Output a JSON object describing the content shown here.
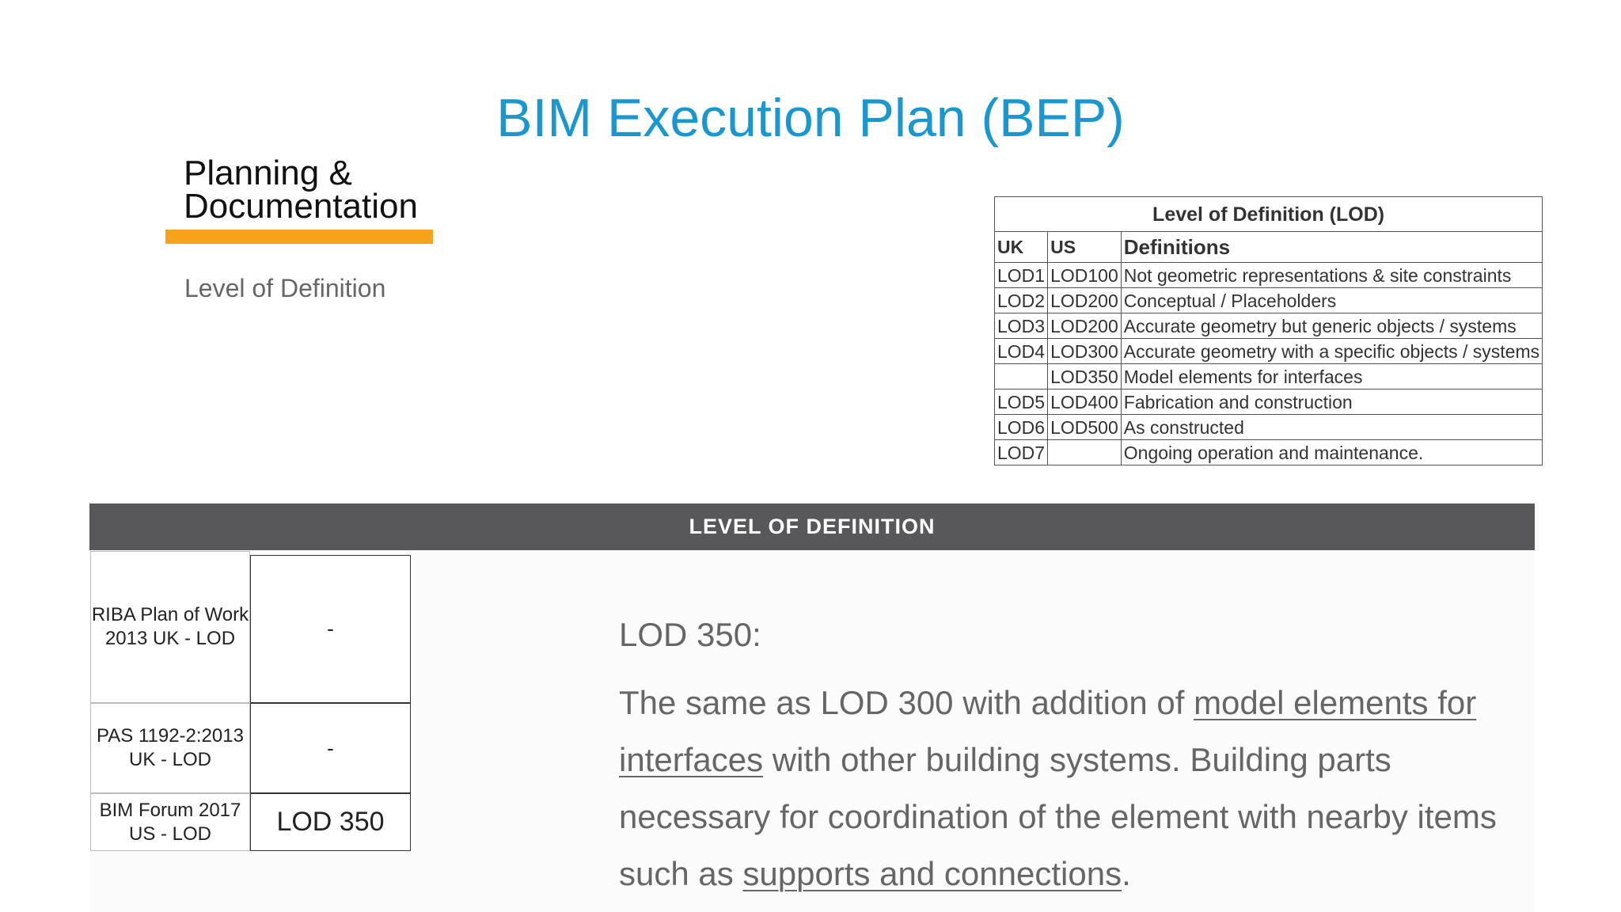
{
  "title": "BIM Execution Plan (BEP)",
  "section": {
    "title_line1": "Planning &",
    "title_line2": "Documentation",
    "subtitle": "Level of Definition"
  },
  "lod_table": {
    "caption": "Level of Definition (LOD)",
    "headers": [
      "UK",
      "US",
      "Definitions"
    ],
    "rows": [
      [
        "LOD1",
        "LOD100",
        "Not geometric representations & site constraints"
      ],
      [
        "LOD2",
        "LOD200",
        "Conceptual / Placeholders"
      ],
      [
        "LOD3",
        "LOD200",
        "Accurate geometry but generic objects / systems"
      ],
      [
        "LOD4",
        "LOD300",
        "Accurate geometry with a specific objects / systems"
      ],
      [
        "",
        "LOD350",
        "Model elements for interfaces"
      ],
      [
        "LOD5",
        "LOD400",
        "Fabrication and construction"
      ],
      [
        "LOD6",
        "LOD500",
        "As constructed"
      ],
      [
        "LOD7",
        "",
        "Ongoing operation and maintenance."
      ]
    ]
  },
  "banner": "LEVEL OF DEFINITION",
  "standards": [
    {
      "label": "RIBA Plan of Work 2013 UK - LOD",
      "value": "-"
    },
    {
      "label": "PAS 1192-2:2013 UK - LOD",
      "value": "-"
    },
    {
      "label": "BIM Forum 2017 US - LOD",
      "value": "LOD 350"
    }
  ],
  "description": {
    "heading": "LOD 350:",
    "part1": "The same as LOD 300 with addition of ",
    "link1": "model elements for interfaces",
    "part2": " with other building systems. Building parts necessary for coordination of the element with nearby items such as ",
    "link2": "supports and connections",
    "part3": "."
  },
  "colors": {
    "title": "#1a97cf",
    "accent_bar": "#f7a21c",
    "banner_bg": "#58585a"
  }
}
